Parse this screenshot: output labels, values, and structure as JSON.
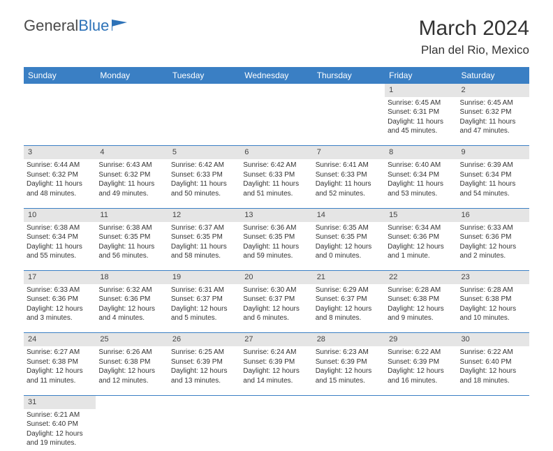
{
  "logo": {
    "text1": "General",
    "text2": "Blue"
  },
  "title": "March 2024",
  "location": "Plan del Rio, Mexico",
  "colors": {
    "header_bg": "#3a7fc4",
    "header_text": "#ffffff",
    "daynum_bg": "#e5e5e5",
    "cell_border": "#3a7fc4",
    "body_text": "#333333",
    "logo_gray": "#4a4a4a",
    "logo_blue": "#2d72b8"
  },
  "weekdays": [
    "Sunday",
    "Monday",
    "Tuesday",
    "Wednesday",
    "Thursday",
    "Friday",
    "Saturday"
  ],
  "weeks": [
    [
      null,
      null,
      null,
      null,
      null,
      {
        "n": "1",
        "sr": "Sunrise: 6:45 AM",
        "ss": "Sunset: 6:31 PM",
        "dl": "Daylight: 11 hours and 45 minutes."
      },
      {
        "n": "2",
        "sr": "Sunrise: 6:45 AM",
        "ss": "Sunset: 6:32 PM",
        "dl": "Daylight: 11 hours and 47 minutes."
      }
    ],
    [
      {
        "n": "3",
        "sr": "Sunrise: 6:44 AM",
        "ss": "Sunset: 6:32 PM",
        "dl": "Daylight: 11 hours and 48 minutes."
      },
      {
        "n": "4",
        "sr": "Sunrise: 6:43 AM",
        "ss": "Sunset: 6:32 PM",
        "dl": "Daylight: 11 hours and 49 minutes."
      },
      {
        "n": "5",
        "sr": "Sunrise: 6:42 AM",
        "ss": "Sunset: 6:33 PM",
        "dl": "Daylight: 11 hours and 50 minutes."
      },
      {
        "n": "6",
        "sr": "Sunrise: 6:42 AM",
        "ss": "Sunset: 6:33 PM",
        "dl": "Daylight: 11 hours and 51 minutes."
      },
      {
        "n": "7",
        "sr": "Sunrise: 6:41 AM",
        "ss": "Sunset: 6:33 PM",
        "dl": "Daylight: 11 hours and 52 minutes."
      },
      {
        "n": "8",
        "sr": "Sunrise: 6:40 AM",
        "ss": "Sunset: 6:34 PM",
        "dl": "Daylight: 11 hours and 53 minutes."
      },
      {
        "n": "9",
        "sr": "Sunrise: 6:39 AM",
        "ss": "Sunset: 6:34 PM",
        "dl": "Daylight: 11 hours and 54 minutes."
      }
    ],
    [
      {
        "n": "10",
        "sr": "Sunrise: 6:38 AM",
        "ss": "Sunset: 6:34 PM",
        "dl": "Daylight: 11 hours and 55 minutes."
      },
      {
        "n": "11",
        "sr": "Sunrise: 6:38 AM",
        "ss": "Sunset: 6:35 PM",
        "dl": "Daylight: 11 hours and 56 minutes."
      },
      {
        "n": "12",
        "sr": "Sunrise: 6:37 AM",
        "ss": "Sunset: 6:35 PM",
        "dl": "Daylight: 11 hours and 58 minutes."
      },
      {
        "n": "13",
        "sr": "Sunrise: 6:36 AM",
        "ss": "Sunset: 6:35 PM",
        "dl": "Daylight: 11 hours and 59 minutes."
      },
      {
        "n": "14",
        "sr": "Sunrise: 6:35 AM",
        "ss": "Sunset: 6:35 PM",
        "dl": "Daylight: 12 hours and 0 minutes."
      },
      {
        "n": "15",
        "sr": "Sunrise: 6:34 AM",
        "ss": "Sunset: 6:36 PM",
        "dl": "Daylight: 12 hours and 1 minute."
      },
      {
        "n": "16",
        "sr": "Sunrise: 6:33 AM",
        "ss": "Sunset: 6:36 PM",
        "dl": "Daylight: 12 hours and 2 minutes."
      }
    ],
    [
      {
        "n": "17",
        "sr": "Sunrise: 6:33 AM",
        "ss": "Sunset: 6:36 PM",
        "dl": "Daylight: 12 hours and 3 minutes."
      },
      {
        "n": "18",
        "sr": "Sunrise: 6:32 AM",
        "ss": "Sunset: 6:36 PM",
        "dl": "Daylight: 12 hours and 4 minutes."
      },
      {
        "n": "19",
        "sr": "Sunrise: 6:31 AM",
        "ss": "Sunset: 6:37 PM",
        "dl": "Daylight: 12 hours and 5 minutes."
      },
      {
        "n": "20",
        "sr": "Sunrise: 6:30 AM",
        "ss": "Sunset: 6:37 PM",
        "dl": "Daylight: 12 hours and 6 minutes."
      },
      {
        "n": "21",
        "sr": "Sunrise: 6:29 AM",
        "ss": "Sunset: 6:37 PM",
        "dl": "Daylight: 12 hours and 8 minutes."
      },
      {
        "n": "22",
        "sr": "Sunrise: 6:28 AM",
        "ss": "Sunset: 6:38 PM",
        "dl": "Daylight: 12 hours and 9 minutes."
      },
      {
        "n": "23",
        "sr": "Sunrise: 6:28 AM",
        "ss": "Sunset: 6:38 PM",
        "dl": "Daylight: 12 hours and 10 minutes."
      }
    ],
    [
      {
        "n": "24",
        "sr": "Sunrise: 6:27 AM",
        "ss": "Sunset: 6:38 PM",
        "dl": "Daylight: 12 hours and 11 minutes."
      },
      {
        "n": "25",
        "sr": "Sunrise: 6:26 AM",
        "ss": "Sunset: 6:38 PM",
        "dl": "Daylight: 12 hours and 12 minutes."
      },
      {
        "n": "26",
        "sr": "Sunrise: 6:25 AM",
        "ss": "Sunset: 6:39 PM",
        "dl": "Daylight: 12 hours and 13 minutes."
      },
      {
        "n": "27",
        "sr": "Sunrise: 6:24 AM",
        "ss": "Sunset: 6:39 PM",
        "dl": "Daylight: 12 hours and 14 minutes."
      },
      {
        "n": "28",
        "sr": "Sunrise: 6:23 AM",
        "ss": "Sunset: 6:39 PM",
        "dl": "Daylight: 12 hours and 15 minutes."
      },
      {
        "n": "29",
        "sr": "Sunrise: 6:22 AM",
        "ss": "Sunset: 6:39 PM",
        "dl": "Daylight: 12 hours and 16 minutes."
      },
      {
        "n": "30",
        "sr": "Sunrise: 6:22 AM",
        "ss": "Sunset: 6:40 PM",
        "dl": "Daylight: 12 hours and 18 minutes."
      }
    ],
    [
      {
        "n": "31",
        "sr": "Sunrise: 6:21 AM",
        "ss": "Sunset: 6:40 PM",
        "dl": "Daylight: 12 hours and 19 minutes."
      },
      null,
      null,
      null,
      null,
      null,
      null
    ]
  ]
}
